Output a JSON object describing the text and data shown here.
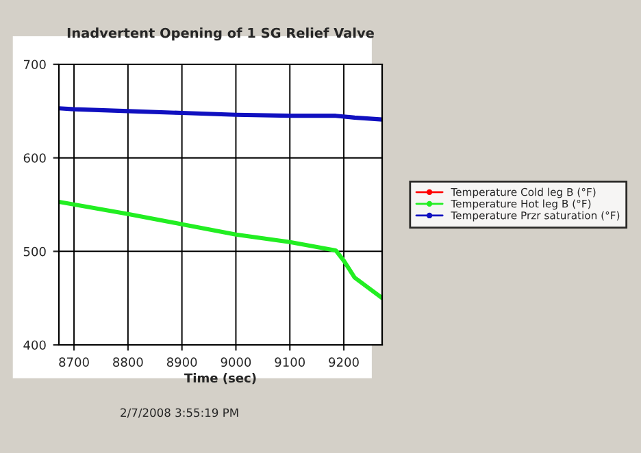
{
  "chart_data": {
    "type": "line",
    "title": "Inadvertent Opening of 1 SG Relief Valve",
    "xlabel": "Time (sec)",
    "xlim": [
      8672,
      9271
    ],
    "xticks": [
      8700,
      8800,
      8900,
      9000,
      9100,
      9200
    ],
    "ylim": [
      400,
      700
    ],
    "yticks": [
      400,
      500,
      600,
      700
    ],
    "grid": true,
    "legend": "right",
    "marker": "none",
    "series": [
      {
        "name": "Temperature Cold leg B (°F)",
        "color": "#ff0000"
      },
      {
        "name": "Temperature Hot leg B (°F)",
        "color": "#22ee22",
        "x": [
          8672,
          8800,
          8900,
          9000,
          9100,
          9185,
          9200,
          9220,
          9271
        ],
        "values": [
          553,
          540,
          529,
          518,
          510,
          501,
          490,
          472,
          450
        ]
      },
      {
        "name": "Temperature Przr saturation (°F)",
        "color": "#1010c0",
        "x": [
          8672,
          8700,
          8800,
          8900,
          9000,
          9100,
          9185,
          9220,
          9271
        ],
        "values": [
          653,
          652,
          650,
          648,
          646,
          645,
          645,
          643,
          641
        ]
      }
    ],
    "annotations": [
      "2/7/2008 3:55:19 PM"
    ]
  }
}
